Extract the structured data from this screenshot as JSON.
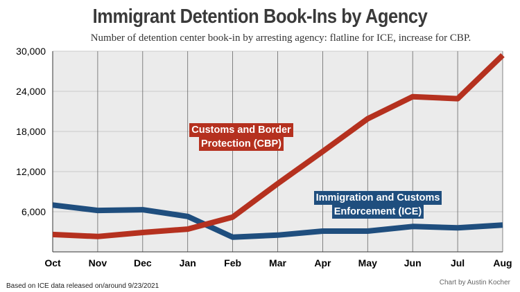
{
  "chart_data": {
    "type": "line",
    "title": "Immigrant Detention Book-Ins by Agency",
    "subtitle": "Number of detention center book-in by arresting agency: flatline for ICE, increase for CBP.",
    "categories": [
      "Oct",
      "Nov",
      "Dec",
      "Jan",
      "Feb",
      "Mar",
      "Apr",
      "May",
      "Jun",
      "Jul",
      "Aug"
    ],
    "ylim": [
      0,
      30000
    ],
    "yticks": [
      {
        "value": 6000,
        "label": "6,000"
      },
      {
        "value": 12000,
        "label": "12,000"
      },
      {
        "value": 18000,
        "label": "18,000"
      },
      {
        "value": 24000,
        "label": "24,000"
      },
      {
        "value": 30000,
        "label": "30,000"
      }
    ],
    "grid": true,
    "xlabel": "",
    "ylabel": "",
    "series": [
      {
        "name": "Customs and Border Protection (CBP)",
        "label_lines": [
          "Customs and Border",
          "Protection (CBP)"
        ],
        "color": "#b5311f",
        "values": [
          2600,
          2300,
          2900,
          3400,
          5200,
          10200,
          15000,
          19900,
          23200,
          22900,
          29400
        ]
      },
      {
        "name": "Immigration and Customs Enforcement (ICE)",
        "label_lines": [
          "Immigration and Customs",
          "Enforcement (ICE)"
        ],
        "color": "#1f4e7e",
        "values": [
          7000,
          6200,
          6300,
          5300,
          2200,
          2500,
          3100,
          3100,
          3800,
          3600,
          4000
        ]
      }
    ]
  },
  "footnote": "Based on ICE data released on/around 9/23/2021",
  "credit": "Chart by Austin Kocher"
}
